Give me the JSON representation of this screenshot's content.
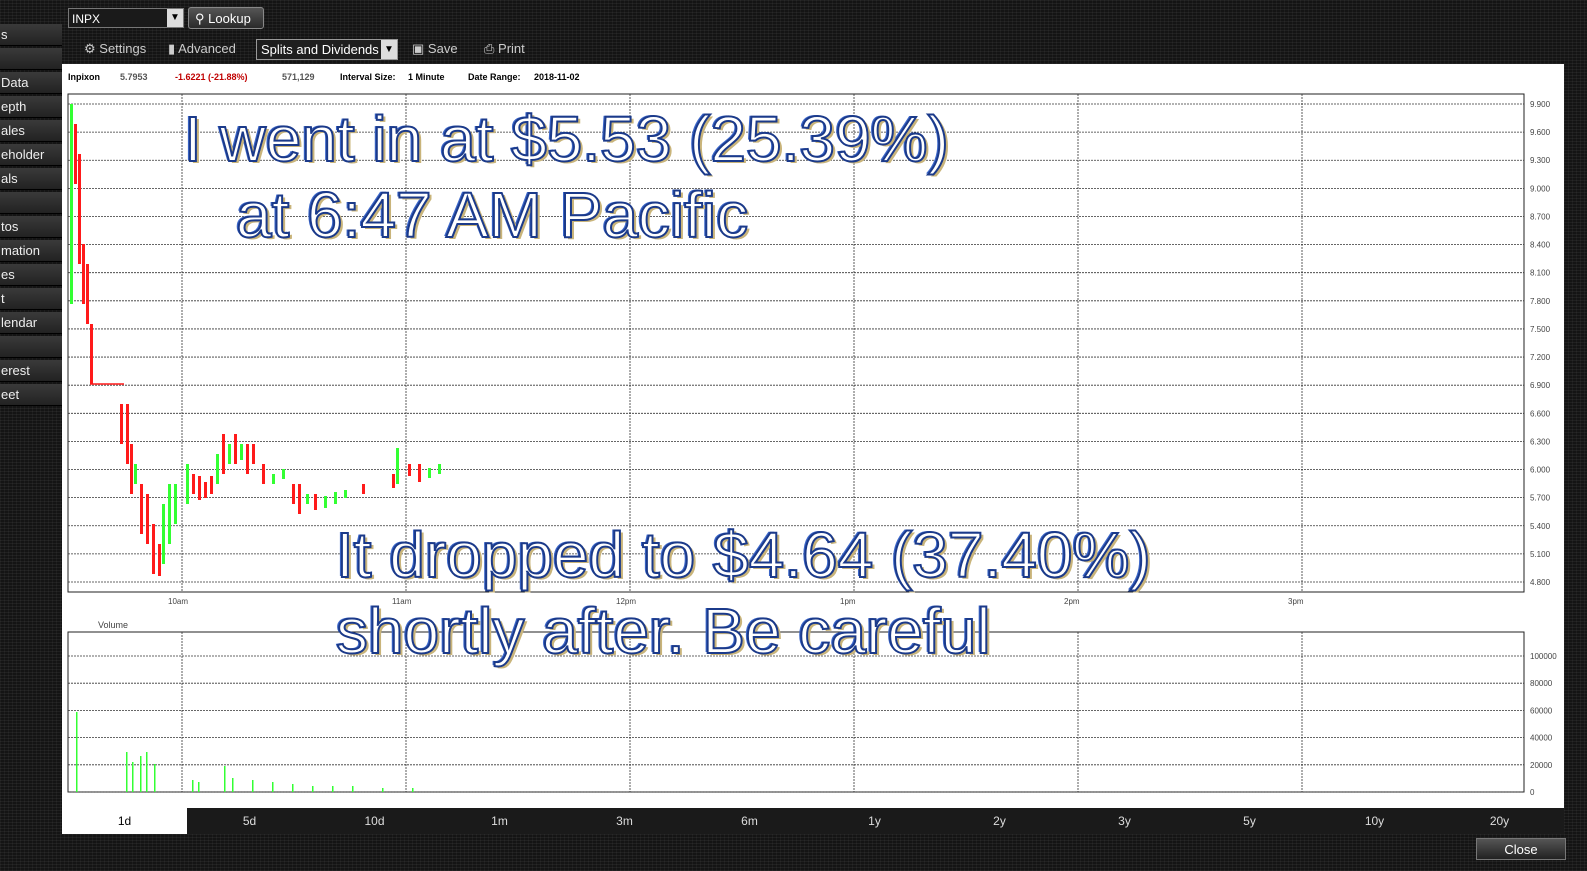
{
  "sidebar": {
    "items": [
      "s",
      "",
      "Data",
      "epth",
      "ales",
      "eholder",
      "als",
      "",
      "tos",
      "mation",
      "es",
      "t",
      "lendar",
      "",
      "erest",
      "eet"
    ]
  },
  "toolbar": {
    "symbol": "INPX",
    "lookup_label": "Lookup",
    "settings_label": "Settings",
    "advanced_label": "Advanced",
    "splits_label": "Splits and Dividends",
    "save_label": "Save",
    "print_label": "Print"
  },
  "info": {
    "name": "Inpixon",
    "last": "5.7953",
    "change": "-1.6221 (-21.88%)",
    "volume": "571,129",
    "interval_label": "Interval Size:",
    "interval_value": "1 Minute",
    "date_label": "Date Range:",
    "date_value": "2018-11-02"
  },
  "chart": {
    "price_ticks": [
      "9.900",
      "9.600",
      "9.300",
      "9.000",
      "8.700",
      "8.400",
      "8.100",
      "7.800",
      "7.500",
      "7.200",
      "6.900",
      "6.600",
      "6.300",
      "6.000",
      "5.700",
      "5.400",
      "5.100",
      "4.800"
    ],
    "time_ticks": [
      "10am",
      "11am",
      "12pm",
      "1pm",
      "2pm",
      "3pm"
    ],
    "volume_label": "Volume",
    "volume_ticks": [
      "100000",
      "80000",
      "60000",
      "40000",
      "20000",
      "0"
    ]
  },
  "captions": {
    "line1": "I went in at $5.53 (25.39%)",
    "line2": "at 6:47 AM Pacific",
    "line3": "It dropped to $4.64 (37.40%)",
    "line4": "shortly after.  Be careful"
  },
  "range_tabs": [
    "1d",
    "5d",
    "10d",
    "1m",
    "3m",
    "6m",
    "1y",
    "2y",
    "3y",
    "5y",
    "10y",
    "20y"
  ],
  "close_label": "Close",
  "colors": {
    "up": "#33ff33",
    "down": "#ff1a1a",
    "grid": "#444444"
  }
}
